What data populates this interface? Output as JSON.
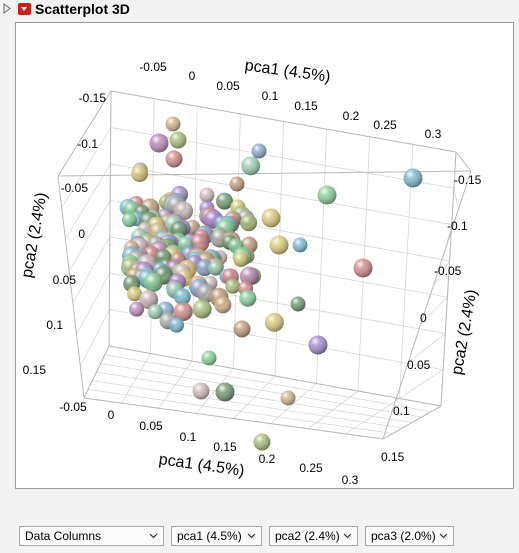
{
  "header": {
    "title": "Scatterplot 3D"
  },
  "controls": {
    "columns_dropdown": "Data Columns",
    "x_dropdown": "pca1 (4.5%)",
    "y_dropdown": "pca2 (2.4%)",
    "z_dropdown": "pca3 (2.0%)"
  },
  "chart_data": {
    "type": "scatter",
    "axes": {
      "top_x_label": "pca1 (4.5%)",
      "bottom_x_label": "pca1 (4.5%)",
      "left_y_label": "pca2 (2.4%)",
      "right_y_label": "pca2 (2.4%)",
      "top_x_ticks": [
        "-0.05",
        "0",
        "0.05",
        "0.1",
        "0.15",
        "0.2",
        "0.25",
        "0.3"
      ],
      "bottom_x_ticks": [
        "-0.05",
        "0",
        "0.05",
        "0.1",
        "0.15",
        "0.2",
        "0.25",
        "0.3"
      ],
      "left_y_ticks": [
        "-0.15",
        "-0.1",
        "-0.05",
        "0",
        "0.05",
        "0.1",
        "0.15"
      ],
      "right_y_ticks": [
        "-0.15",
        "-0.1",
        "-0.05",
        "0",
        "0.05",
        "0.1",
        "0.15"
      ]
    },
    "xlim": [
      -0.05,
      0.3
    ],
    "ylim": [
      -0.15,
      0.15
    ]
  }
}
